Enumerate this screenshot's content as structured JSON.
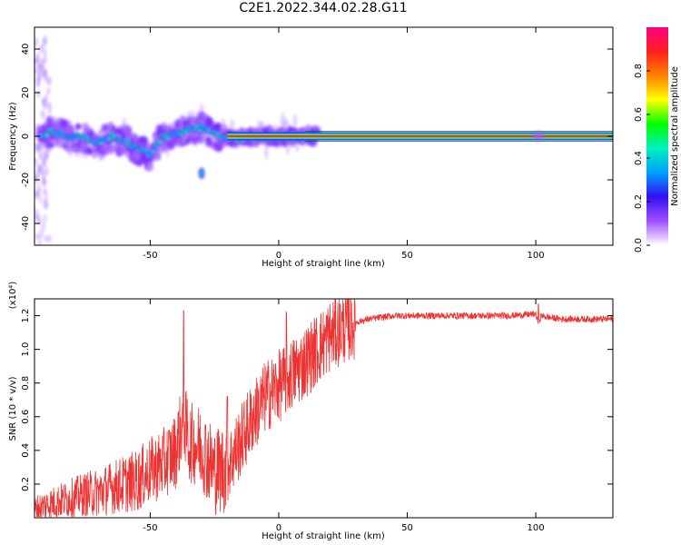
{
  "figure": {
    "title": "C2E1.2022.344.02.28.G11"
  },
  "chart_data": [
    {
      "type": "heatmap",
      "xlabel": "Height of straight line (km)",
      "ylabel": "Frequency (Hz)",
      "xlim": [
        -95,
        130
      ],
      "ylim": [
        -50,
        50
      ],
      "xticks": [
        -50,
        0,
        50,
        100
      ],
      "yticks": [
        -40,
        -20,
        0,
        20,
        40
      ],
      "colorbar": {
        "label": "Normalized spectral amplitude",
        "range": [
          0,
          1
        ],
        "ticks": [
          "0.0",
          "0.2",
          "0.4",
          "0.6",
          "0.8"
        ],
        "colors": [
          "#ffffff",
          "#a050ff",
          "#3010f0",
          "#00a0ff",
          "#00f0c0",
          "#00ff00",
          "#ffff00",
          "#ff8000",
          "#ff2020",
          "#ff0080"
        ]
      },
      "ridge": [
        {
          "x": -90,
          "y": 2
        },
        {
          "x": -85,
          "y": 1
        },
        {
          "x": -80,
          "y": 0
        },
        {
          "x": -75,
          "y": -1
        },
        {
          "x": -70,
          "y": -3
        },
        {
          "x": -65,
          "y": 0
        },
        {
          "x": -60,
          "y": -2
        },
        {
          "x": -55,
          "y": -6
        },
        {
          "x": -50,
          "y": -8
        },
        {
          "x": -45,
          "y": 0
        },
        {
          "x": -40,
          "y": 1
        },
        {
          "x": -35,
          "y": 3
        },
        {
          "x": -30,
          "y": 4
        },
        {
          "x": -25,
          "y": 1
        },
        {
          "x": -20,
          "y": -1
        },
        {
          "x": -15,
          "y": -1
        },
        {
          "x": -10,
          "y": 0
        },
        {
          "x": -5,
          "y": 0
        },
        {
          "x": 0,
          "y": 0
        },
        {
          "x": 5,
          "y": 0
        },
        {
          "x": 10,
          "y": 0
        },
        {
          "x": 20,
          "y": 0
        },
        {
          "x": 50,
          "y": 0
        },
        {
          "x": 100,
          "y": 0
        },
        {
          "x": 130,
          "y": 0
        }
      ],
      "notable_features": [
        {
          "x": -30,
          "y": -17
        },
        {
          "x": 101,
          "y": 0
        }
      ]
    },
    {
      "type": "line",
      "xlabel": "Height of straight line (km)",
      "ylabel": "SNR (10 * v/v)",
      "yscale_note": "(x10⁴)",
      "xlim": [
        -95,
        130
      ],
      "ylim": [
        0,
        1.3
      ],
      "xticks": [
        -50,
        0,
        50,
        100
      ],
      "yticks": [
        "0.2",
        "0.4",
        "0.6",
        "0.8",
        "1.0",
        "1.2"
      ],
      "series": [
        {
          "color": "#ee3333",
          "x": [
            -95,
            -90,
            -85,
            -80,
            -75,
            -70,
            -65,
            -60,
            -55,
            -50,
            -45,
            -40,
            -37,
            -35,
            -30,
            -25,
            -20,
            -15,
            -10,
            -5,
            0,
            5,
            10,
            15,
            20,
            25,
            30,
            35,
            40,
            45,
            50,
            60,
            70,
            80,
            90,
            100,
            101,
            102,
            105,
            110,
            120,
            130
          ],
          "y": [
            0.05,
            0.08,
            0.1,
            0.12,
            0.14,
            0.15,
            0.18,
            0.2,
            0.22,
            0.28,
            0.32,
            0.4,
            0.6,
            0.45,
            0.42,
            0.28,
            0.3,
            0.45,
            0.6,
            0.72,
            0.78,
            0.85,
            0.92,
            1.0,
            1.08,
            1.13,
            1.16,
            1.18,
            1.19,
            1.2,
            1.2,
            1.2,
            1.2,
            1.2,
            1.2,
            1.21,
            1.15,
            1.2,
            1.19,
            1.18,
            1.18,
            1.18
          ]
        }
      ],
      "spikes": [
        {
          "x": -37,
          "y": 1.23
        },
        {
          "x": -20,
          "y": 0.72
        },
        {
          "x": 3,
          "y": 1.22
        },
        {
          "x": 101,
          "y": 1.27
        }
      ]
    }
  ]
}
